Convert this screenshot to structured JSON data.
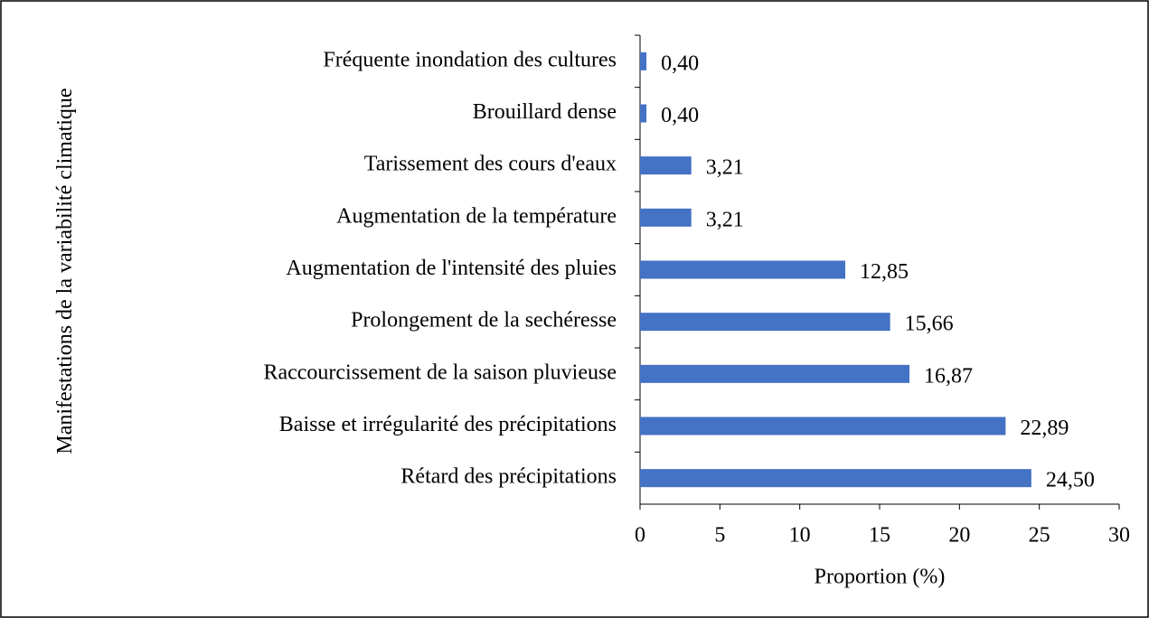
{
  "chart_data": {
    "type": "bar",
    "orientation": "horizontal",
    "y_axis_label": "Manifestations de la variabilité climatique",
    "x_axis_label": "Proportion (%)",
    "categories": [
      "Fréquente inondation des cultures",
      "Brouillard dense",
      "Tarissement des cours d'eaux",
      "Augmentation de la température",
      "Augmentation de l'intensité des pluies",
      "Prolongement de la sechéresse",
      "Raccourcissement de la saison pluvieuse",
      "Baisse et irrégularité des précipitations",
      "Rétard des précipitations"
    ],
    "values": [
      0.4,
      0.4,
      3.21,
      3.21,
      12.85,
      15.66,
      16.87,
      22.89,
      24.5
    ],
    "value_labels": [
      "0,40",
      "0,40",
      "3,21",
      "3,21",
      "12,85",
      "15,66",
      "16,87",
      "22,89",
      "24,50"
    ],
    "color": "#4472c4",
    "xlim": [
      0,
      30
    ],
    "xticks": [
      0,
      5,
      10,
      15,
      20,
      25,
      30
    ]
  }
}
